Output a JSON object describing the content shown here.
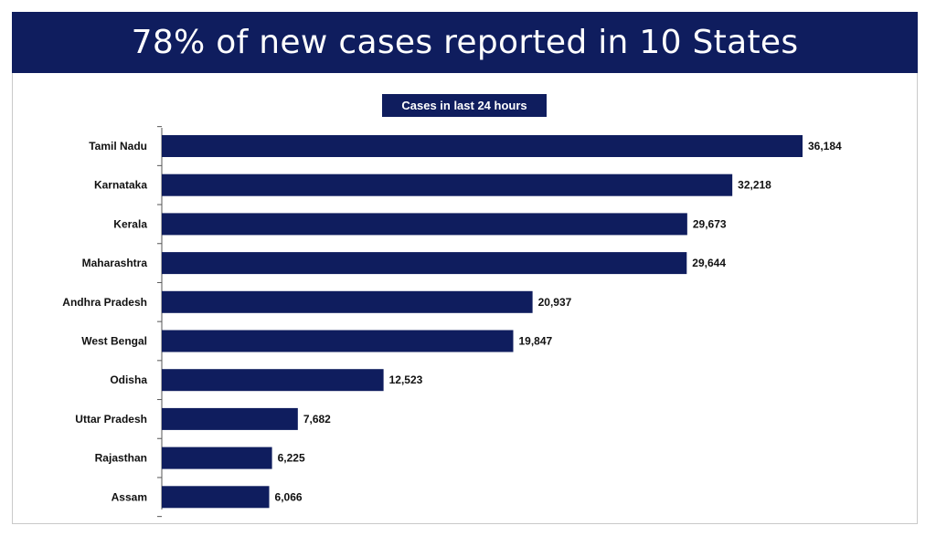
{
  "title": "78% of new cases reported in 10 States",
  "colors": {
    "banner": "#0f1d5e",
    "bar": "#0f1d5e"
  },
  "chart_data": {
    "type": "bar",
    "orientation": "horizontal",
    "title": "Cases in last 24 hours",
    "categories": [
      "Tamil Nadu",
      "Karnataka",
      "Kerala",
      "Maharashtra",
      "Andhra Pradesh",
      "West Bengal",
      "Odisha",
      "Uttar Pradesh",
      "Rajasthan",
      "Assam"
    ],
    "values": [
      36184,
      32218,
      29673,
      29644,
      20937,
      19847,
      12523,
      7682,
      6225,
      6066
    ],
    "value_labels": [
      "36,184",
      "32,218",
      "29,673",
      "29,644",
      "20,937",
      "19,847",
      "12,523",
      "7,682",
      "6,225",
      "6,066"
    ],
    "xlim": [
      0,
      36184
    ],
    "grid": false,
    "legend": "none"
  }
}
